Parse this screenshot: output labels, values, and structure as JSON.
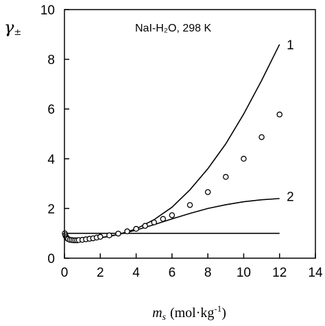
{
  "chart_data": {
    "type": "line",
    "annotation": "NaI-H₂O, 298 K",
    "ylabel": {
      "symbol": "γ",
      "subscript": "±"
    },
    "xlabel": {
      "symbol": "m",
      "subscript": "s",
      "units": "(mol·kg",
      "units_exp": "-1",
      "units_close": ")"
    },
    "xlim": [
      0,
      14
    ],
    "ylim": [
      0,
      10
    ],
    "xticks": [
      0,
      2,
      4,
      6,
      8,
      10,
      12,
      14
    ],
    "yticks": [
      0,
      2,
      4,
      6,
      8,
      10
    ],
    "xtick_labels": [
      "0",
      "2",
      "4",
      "6",
      "8",
      "10",
      "12",
      "14"
    ],
    "ytick_labels": [
      "0",
      "2",
      "4",
      "6",
      "8",
      "10"
    ],
    "series": [
      {
        "name": "1",
        "style": "line",
        "x": [
          0,
          0.05,
          0.1,
          0.2,
          0.4,
          0.7,
          1.0,
          1.5,
          2,
          2.5,
          3,
          3.5,
          4,
          5,
          6,
          7,
          8,
          9,
          10,
          11,
          12
        ],
        "y": [
          1.0,
          0.85,
          0.81,
          0.77,
          0.74,
          0.73,
          0.74,
          0.77,
          0.82,
          0.88,
          0.96,
          1.06,
          1.18,
          1.55,
          2.05,
          2.75,
          3.6,
          4.6,
          5.8,
          7.15,
          8.6
        ]
      },
      {
        "name": "2",
        "style": "line",
        "x": [
          0,
          0.05,
          0.1,
          0.2,
          0.4,
          0.7,
          1.0,
          1.5,
          2,
          2.5,
          3,
          3.5,
          4,
          5,
          6,
          7,
          8,
          9,
          10,
          11,
          12
        ],
        "y": [
          1.0,
          0.85,
          0.81,
          0.77,
          0.74,
          0.73,
          0.74,
          0.77,
          0.82,
          0.88,
          0.95,
          1.04,
          1.13,
          1.35,
          1.58,
          1.8,
          2.0,
          2.15,
          2.27,
          2.35,
          2.4
        ]
      },
      {
        "style": "line",
        "x": [
          0,
          12
        ],
        "y": [
          1.0,
          1.0
        ]
      },
      {
        "style": "markers",
        "marker": "open-circle",
        "x": [
          0.02,
          0.05,
          0.1,
          0.15,
          0.2,
          0.3,
          0.4,
          0.5,
          0.6,
          0.7,
          0.8,
          1.0,
          1.2,
          1.4,
          1.6,
          1.8,
          2.0,
          2.5,
          3.0,
          3.5,
          4.0,
          4.5,
          5.0,
          5.5,
          6.0,
          7.0,
          8.0,
          9.0,
          10.0,
          11.0,
          12.0
        ],
        "y": [
          1.0,
          0.92,
          0.85,
          0.8,
          0.77,
          0.74,
          0.73,
          0.72,
          0.72,
          0.72,
          0.73,
          0.74,
          0.76,
          0.78,
          0.8,
          0.83,
          0.86,
          0.92,
          0.99,
          1.08,
          1.18,
          1.3,
          1.44,
          1.58,
          1.73,
          2.14,
          2.66,
          3.27,
          4.0,
          4.87,
          5.78
        ]
      }
    ],
    "curve_labels": [
      {
        "text": "1",
        "x": 12.4,
        "y": 8.6
      },
      {
        "text": "2",
        "x": 12.4,
        "y": 2.5
      }
    ],
    "grid": false,
    "legend": "none",
    "colors": {
      "line": "#000000",
      "marker": "#000000",
      "background": "#ffffff"
    }
  }
}
